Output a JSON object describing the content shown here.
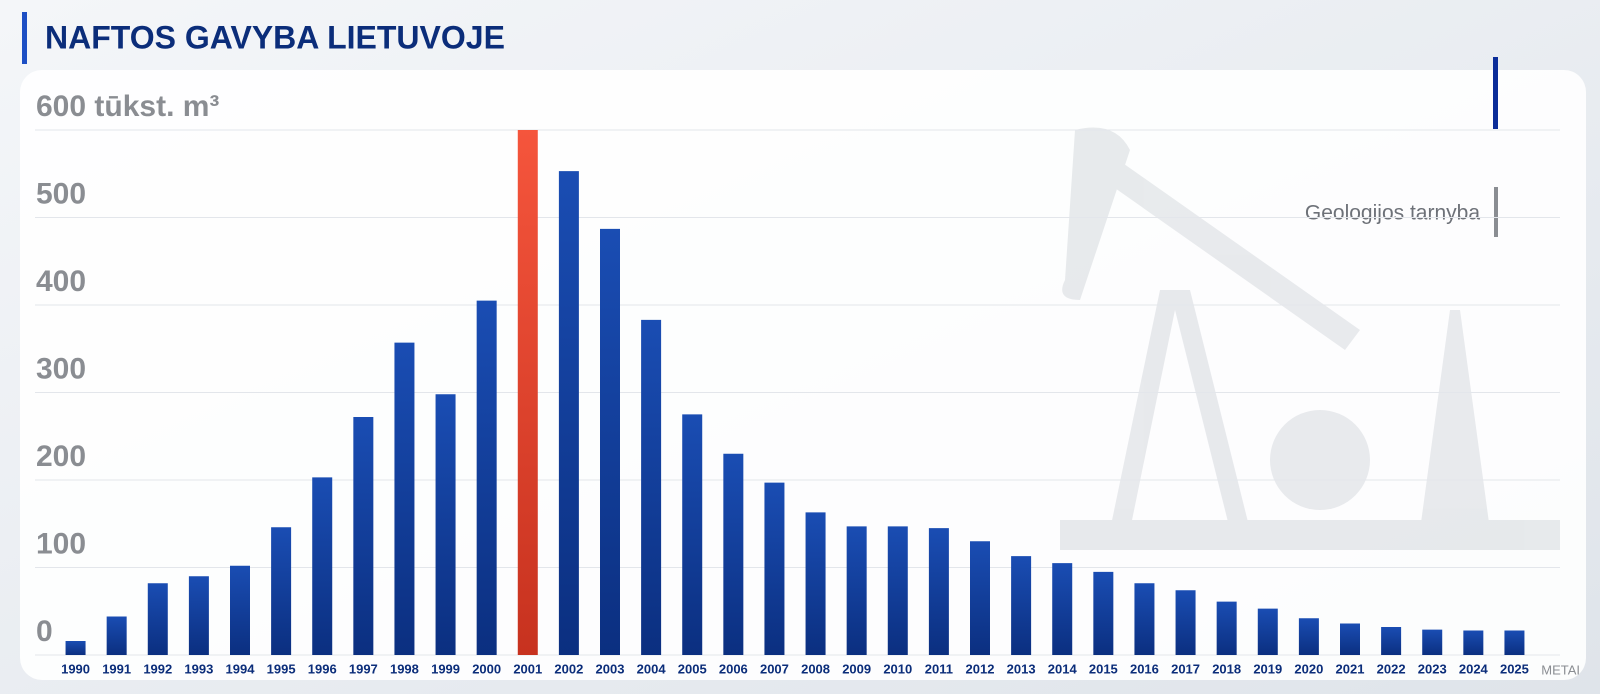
{
  "chart_data": {
    "type": "bar",
    "title": "NAFTOS GAVYBA LIETUVOJE",
    "source": "Geologijos tarnyba",
    "x_label": "METAI",
    "categories": [
      "1990",
      "1991",
      "1992",
      "1993",
      "1994",
      "1995",
      "1996",
      "1997",
      "1998",
      "1999",
      "2000",
      "2001",
      "2002",
      "2003",
      "2004",
      "2005",
      "2006",
      "2007",
      "2008",
      "2009",
      "2010",
      "2011",
      "2012",
      "2013",
      "2014",
      "2015",
      "2016",
      "2017",
      "2018",
      "2019",
      "2020",
      "2021",
      "2022",
      "2023",
      "2024",
      "2025"
    ],
    "values": [
      16,
      44,
      82,
      90,
      102,
      146,
      203,
      272,
      357,
      298,
      405,
      600,
      553,
      487,
      383,
      275,
      230,
      197,
      163,
      147,
      147,
      145,
      130,
      113,
      105,
      95,
      82,
      74,
      61,
      53,
      42,
      36,
      32,
      29,
      28,
      28
    ],
    "color": "#0f3c99",
    "highlight": {
      "category": "2001",
      "color": "#e2432e"
    },
    "ylim": [
      0,
      600
    ],
    "yticks": [
      0,
      100,
      200,
      300,
      400,
      500,
      {
        "value": 600,
        "label": "600 tūkst. m³"
      }
    ],
    "grid": true
  }
}
